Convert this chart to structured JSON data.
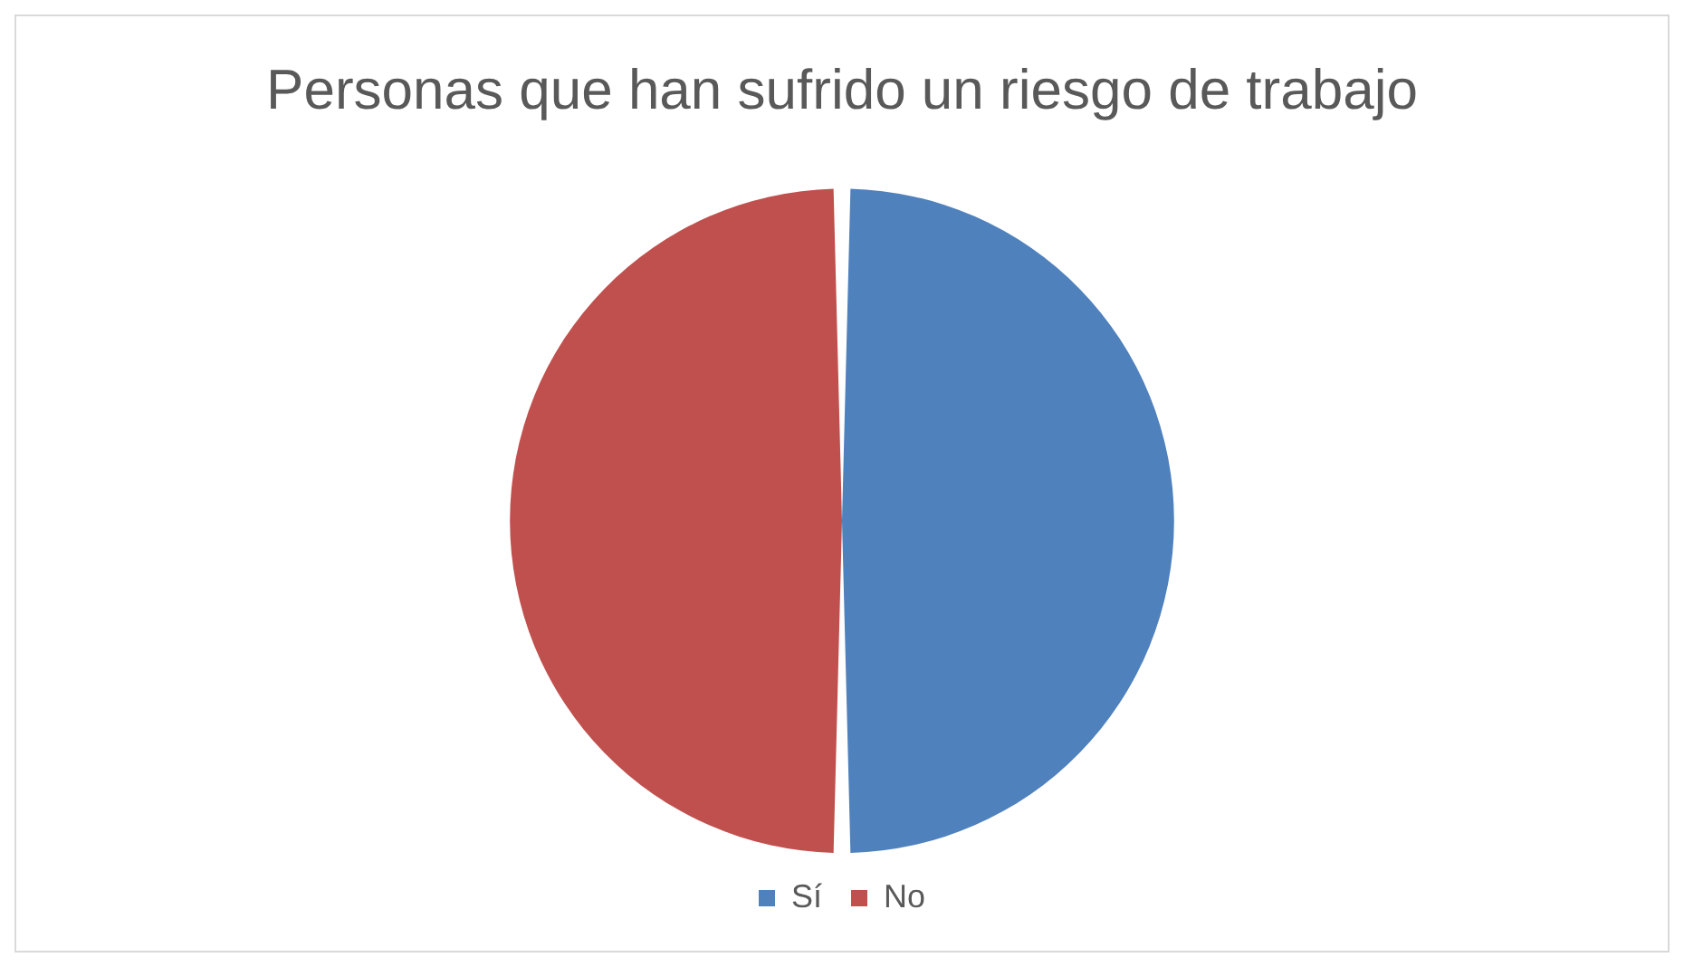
{
  "chart_data": {
    "type": "pie",
    "title": "Personas que han sufrido un riesgo de trabajo",
    "categories": [
      "Sí",
      "No"
    ],
    "values": [
      50,
      50
    ],
    "colors": [
      "#4f81bd",
      "#c0504d"
    ],
    "legend": "bottom"
  }
}
